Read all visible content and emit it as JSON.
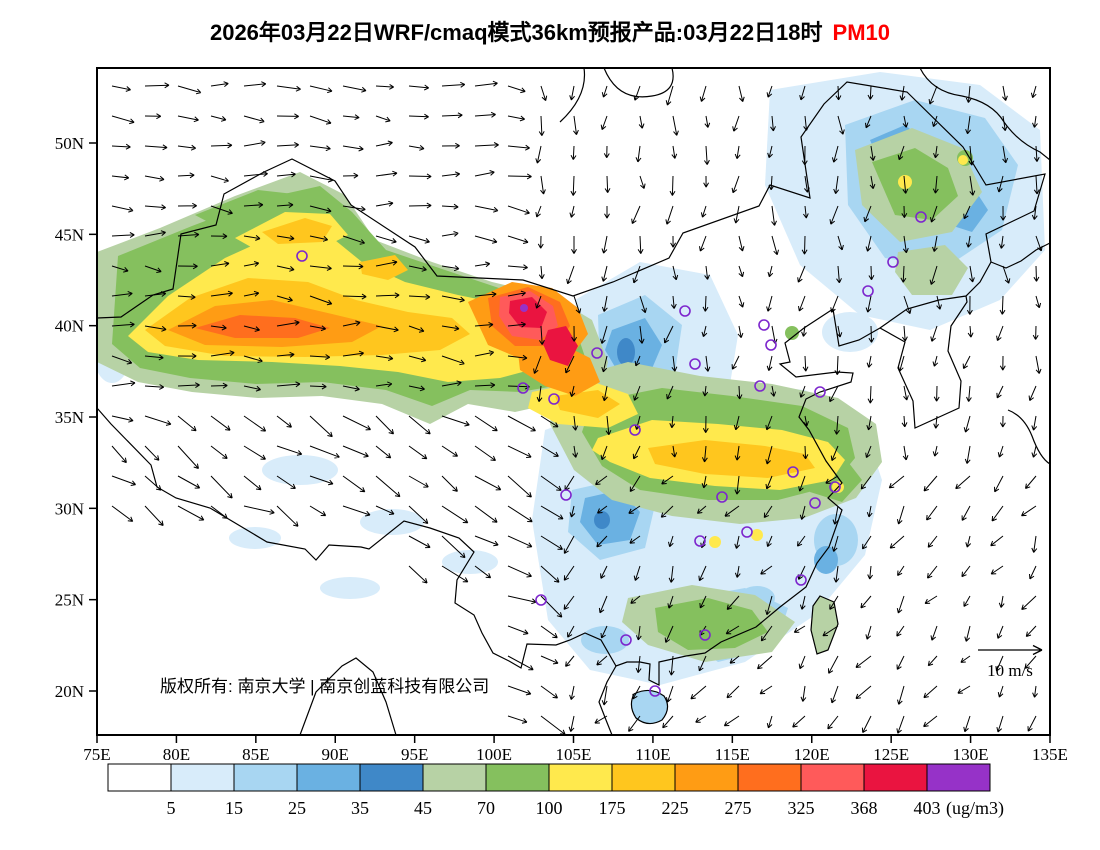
{
  "title": {
    "main": "2026年03月22日WRF/cmaq模式36km预报产品:03月22日18时",
    "pollutant": "PM10",
    "pollutant_color": "#ff0000"
  },
  "axes": {
    "lat_labels": [
      "50N",
      "45N",
      "40N",
      "35N",
      "30N",
      "25N",
      "20N"
    ],
    "lat_values": [
      50,
      45,
      40,
      35,
      30,
      25,
      20
    ],
    "lon_labels": [
      "75E",
      "80E",
      "85E",
      "90E",
      "95E",
      "100E",
      "105E",
      "110E",
      "115E",
      "120E",
      "125E",
      "130E",
      "135E"
    ],
    "lon_values": [
      75,
      80,
      85,
      90,
      95,
      100,
      105,
      110,
      115,
      120,
      125,
      130,
      135
    ]
  },
  "colorbar": {
    "labels": [
      "5",
      "15",
      "25",
      "35",
      "45",
      "70",
      "100",
      "175",
      "225",
      "275",
      "325",
      "368",
      "403"
    ],
    "unit": "(ug/m3)",
    "colors": [
      "#ffffff",
      "#d8ecfa",
      "#a8d6f2",
      "#6ab1e2",
      "#3f88c8",
      "#b7d2a5",
      "#85c05e",
      "#ffe94d",
      "#ffc61e",
      "#ff9c14",
      "#ff6e1e",
      "#ff5a5a",
      "#ea1440",
      "#9632c8"
    ]
  },
  "wind_legend": {
    "label": "10 m/s"
  },
  "copyright": {
    "text": "版权所有: 南京大学 | 南京创蓝科技有限公司"
  },
  "markers": {
    "color": "#7d26cd"
  }
}
